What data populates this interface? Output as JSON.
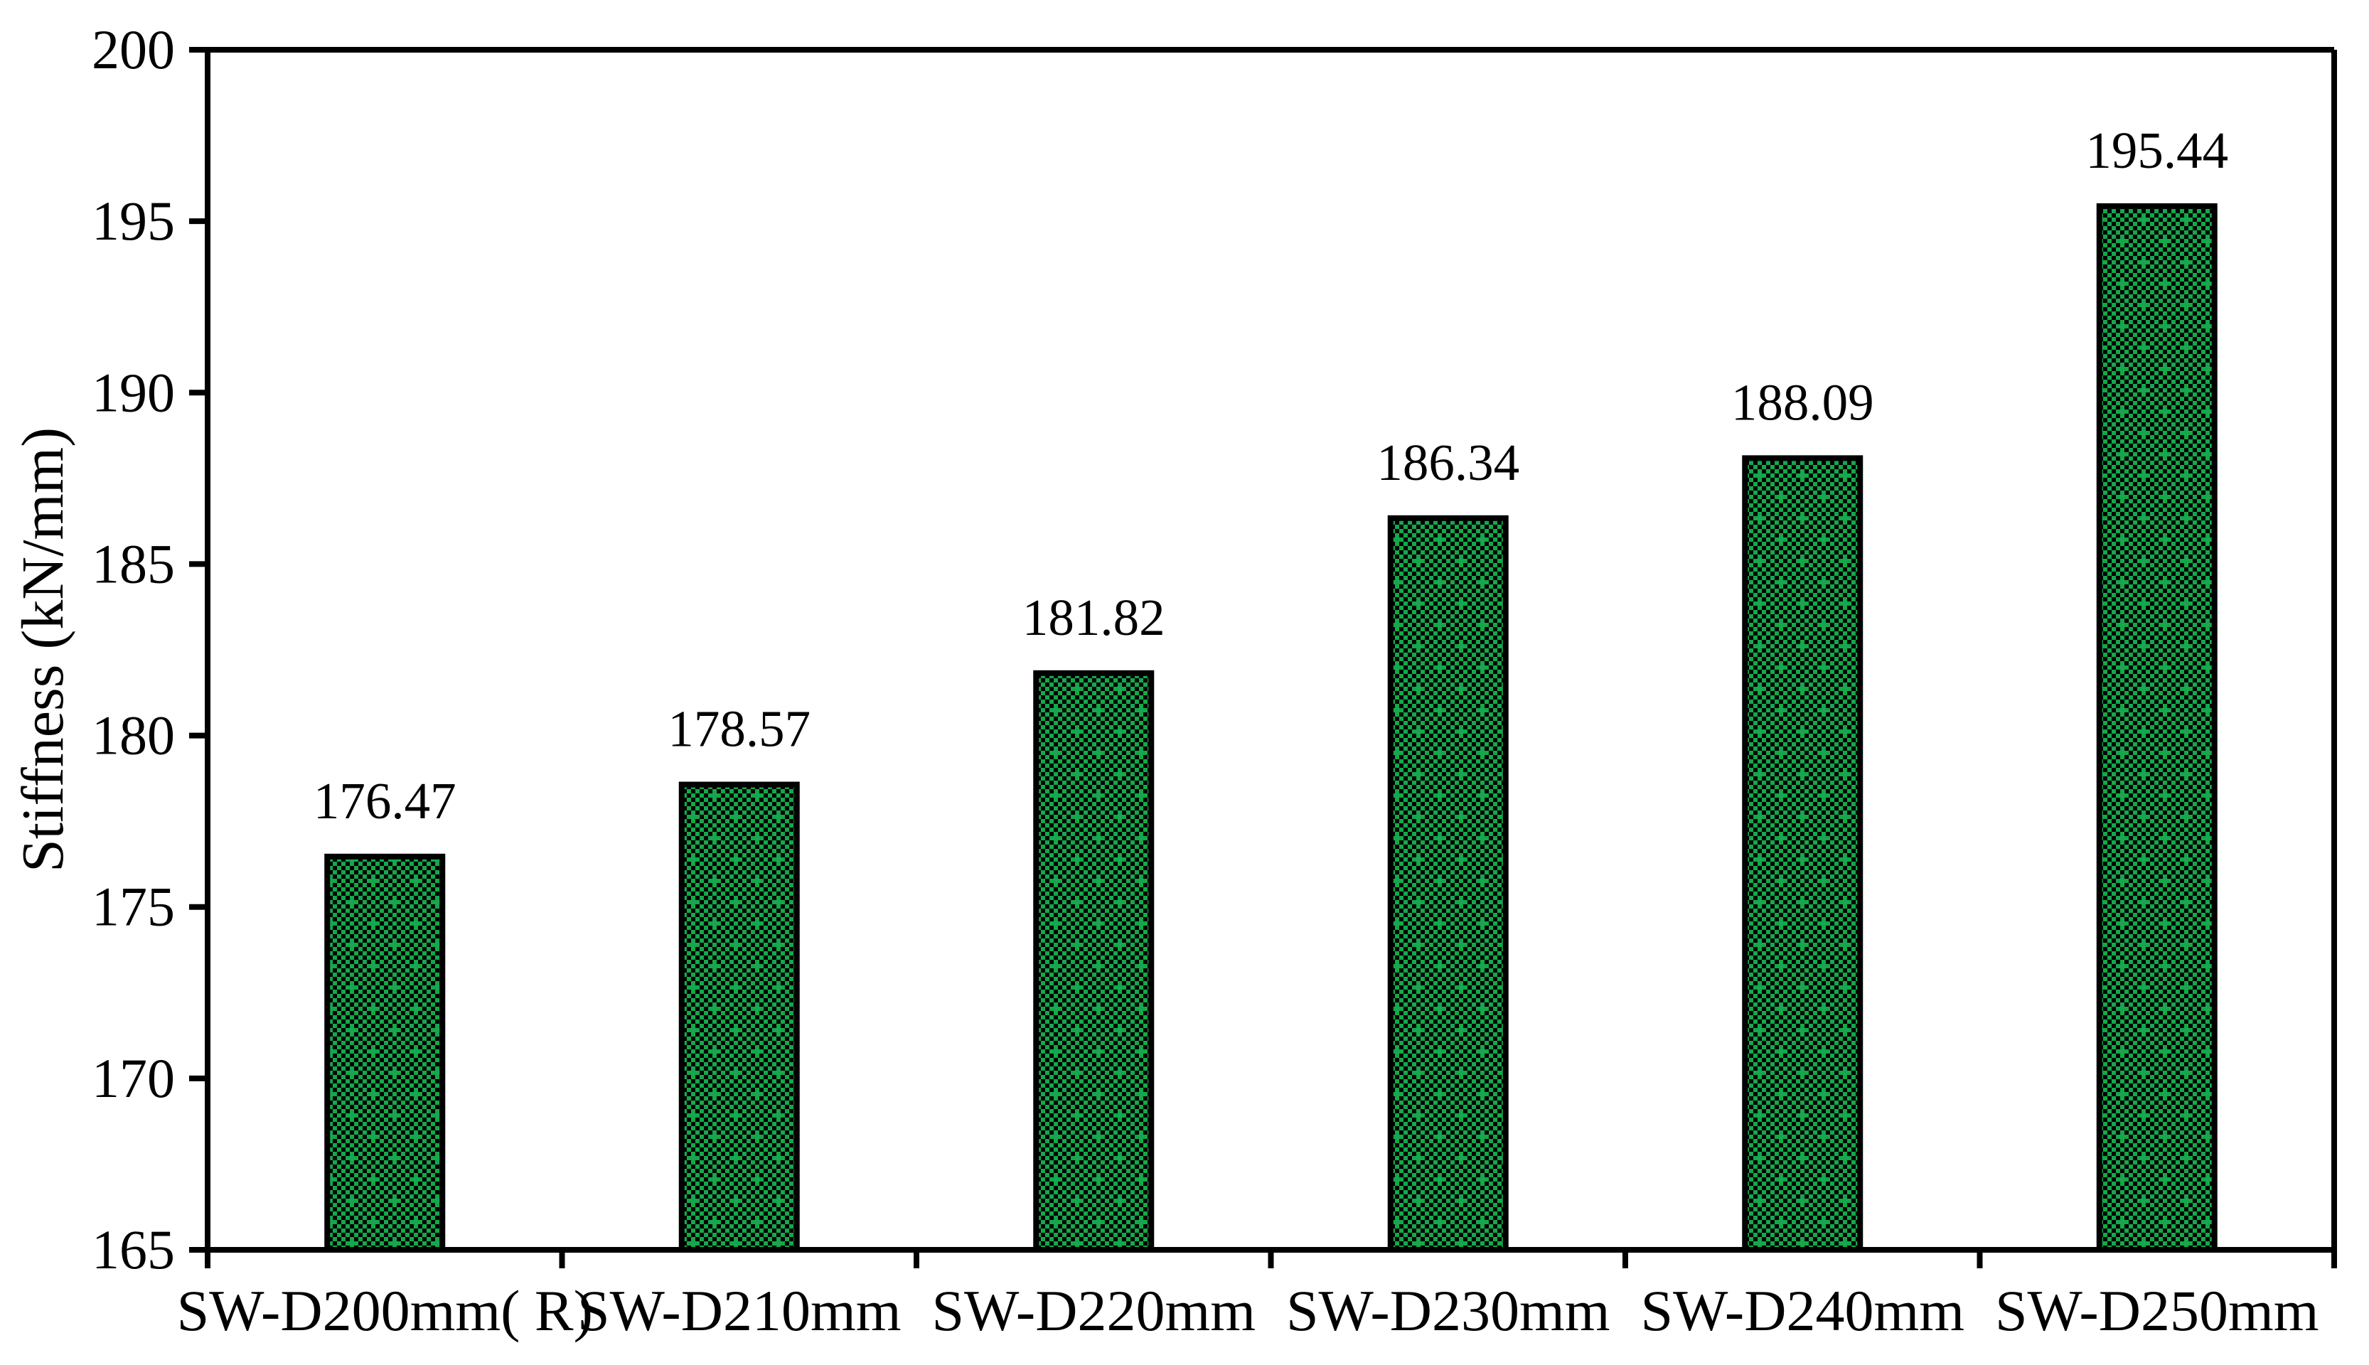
{
  "chart_data": {
    "type": "bar",
    "title": "",
    "xlabel": "",
    "ylabel": "Stiffness (kN/mm)",
    "categories": [
      "SW-D200mm( R)",
      "SW-D210mm",
      "SW-D220mm",
      "SW-D230mm",
      "SW-D240mm",
      "SW-D250mm"
    ],
    "values": [
      176.47,
      178.57,
      181.82,
      186.34,
      188.09,
      195.44
    ],
    "labels": [
      "176.47",
      "178.57",
      "181.82",
      "186.34",
      "188.09",
      "195.44"
    ],
    "ylim": [
      165,
      200
    ],
    "yticks": [
      "165",
      "170",
      "175",
      "180",
      "185",
      "190",
      "195",
      "200"
    ],
    "ytick_step": 5,
    "grid": false,
    "legend": null,
    "plot_border": "full-frame",
    "bar_pattern": "small-checkerboard-with-dotted-diamond",
    "colors": {
      "bar_fill_green": "#15A84B",
      "bar_pattern_black": "#000000",
      "bar_border": "#000000",
      "axis": "#000000",
      "text": "#000000",
      "background": "#FFFFFF"
    }
  }
}
